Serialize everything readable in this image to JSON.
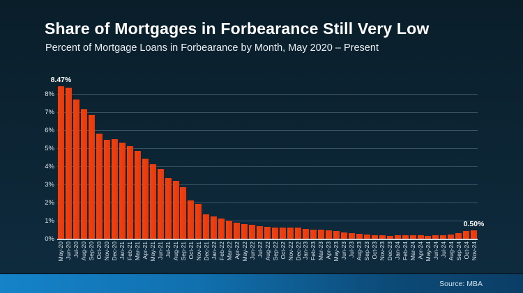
{
  "header": {
    "title": "Share of Mortgages in Forbearance Still Very Low",
    "subtitle": "Percent of Mortgage Loans in Forbearance by Month, May 2020 – Present"
  },
  "footer": {
    "source": "Source: MBA"
  },
  "colors": {
    "background_top": "#0a1e2a",
    "background_bottom": "#0e2c3f",
    "bar": "#e93c0e",
    "text": "#ffffff",
    "gridline": "rgba(165,195,210,0.30)",
    "footer_band_left": "#1583c9",
    "footer_band_right": "#0b3e66"
  },
  "chart_data": {
    "type": "bar",
    "title": "Share of Mortgages in Forbearance Still Very Low",
    "subtitle": "Percent of Mortgage Loans in Forbearance by Month, May 2020 – Present",
    "xlabel": "",
    "ylabel": "",
    "ylim": [
      0,
      9
    ],
    "yticks": [
      "0%",
      "1%",
      "2%",
      "3%",
      "4%",
      "5%",
      "6%",
      "7%",
      "8%"
    ],
    "grid": true,
    "legend": false,
    "bar_color": "#e93c0e",
    "categories": [
      "May-20",
      "Jun-20",
      "Jul-20",
      "Aug-20",
      "Sep-20",
      "Oct-20",
      "Nov-20",
      "Dec-20",
      "Jan-21",
      "Feb-21",
      "Mar-21",
      "Apr-21",
      "May-21",
      "Jun-21",
      "Jul-21",
      "Aug-21",
      "Sep-21",
      "Oct-21",
      "Nov-21",
      "Dec-21",
      "Jan-22",
      "Feb-22",
      "Mar-22",
      "Apr-22",
      "May-22",
      "Jun-22",
      "Jul-22",
      "Aug-22",
      "Sep-22",
      "Oct-22",
      "Nov-22",
      "Dec-22",
      "Jan-23",
      "Feb-23",
      "Mar-23",
      "Apr-23",
      "May-23",
      "Jun-23",
      "Jul-23",
      "Aug-23",
      "Sep-23",
      "Oct-23",
      "Nov-23",
      "Dec-23",
      "Jan-24",
      "Feb-24",
      "Mar-24",
      "Apr-24",
      "May-24",
      "Jun-24",
      "Jul-24",
      "Aug-24",
      "Sep-24",
      "Oct-24",
      "Nov-24"
    ],
    "values": [
      8.47,
      8.39,
      7.75,
      7.2,
      6.9,
      5.85,
      5.5,
      5.53,
      5.35,
      5.15,
      4.9,
      4.45,
      4.15,
      3.87,
      3.4,
      3.23,
      2.89,
      2.15,
      1.97,
      1.38,
      1.28,
      1.15,
      1.02,
      0.92,
      0.85,
      0.8,
      0.73,
      0.69,
      0.65,
      0.66,
      0.66,
      0.64,
      0.58,
      0.55,
      0.52,
      0.49,
      0.46,
      0.4,
      0.34,
      0.3,
      0.28,
      0.25,
      0.23,
      0.2,
      0.22,
      0.22,
      0.22,
      0.22,
      0.21,
      0.23,
      0.25,
      0.28,
      0.33,
      0.46,
      0.5
    ],
    "annotations": [
      {
        "index": 0,
        "label": "8.47%"
      },
      {
        "index": 54,
        "label": "0.50%"
      }
    ]
  }
}
